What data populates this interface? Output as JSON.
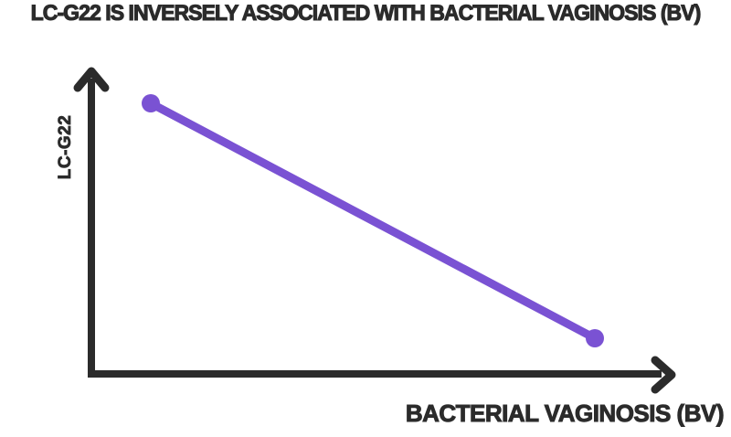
{
  "figure": {
    "title": "LC-G22 IS INVERSELY ASSOCIATED WITH BACTERIAL VAGINOSIS (BV)",
    "y_axis_label": "LC-G22",
    "x_axis_label": "BACTERIAL VAGINOSIS (BV)"
  },
  "colors": {
    "background": "#ffffff",
    "text_and_axes": "#2b2b2b",
    "line": "#7a52d3"
  },
  "chart_data": {
    "type": "line",
    "title": "LC-G22 IS INVERSELY ASSOCIATED WITH BACTERIAL VAGINOSIS (BV)",
    "xlabel": "BACTERIAL VAGINOSIS (BV)",
    "ylabel": "LC-G22",
    "x": [
      0,
      1
    ],
    "series": [
      {
        "name": "LC-G22",
        "values": [
          1,
          0
        ]
      }
    ],
    "relationship": "inverse (straight declining line)",
    "axis_ticks": "none (conceptual axes with arrowheads)",
    "grid": false,
    "legend": "none",
    "marker": "filled circle at each endpoint",
    "line_color": "#7a52d3",
    "axis_color": "#2b2b2b"
  }
}
